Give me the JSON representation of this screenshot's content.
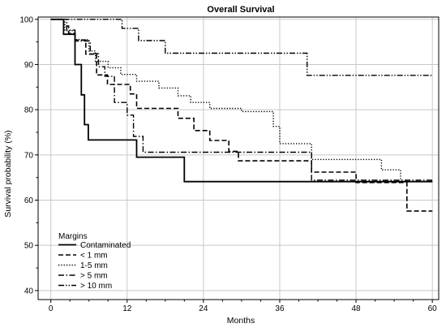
{
  "chart_data": {
    "type": "line",
    "title": "Overall Survival",
    "xlabel": "Months",
    "ylabel": "Survival probability (%)",
    "xlim": [
      -2,
      61
    ],
    "ylim": [
      38,
      100.5
    ],
    "xticks": [
      0,
      12,
      24,
      36,
      48,
      60
    ],
    "yticks": [
      40,
      50,
      60,
      70,
      80,
      90,
      100
    ],
    "grid": true,
    "legend": {
      "title": "Margins",
      "position": "bottom-left",
      "items": [
        "Contaminated",
        "< 1 mm",
        "1-5 mm",
        "> 5 mm",
        "> 10 mm"
      ]
    },
    "series": [
      {
        "name": "Contaminated",
        "line_style": "solid",
        "points": [
          [
            0,
            100
          ],
          [
            2,
            100
          ],
          [
            2,
            96.7
          ],
          [
            3.8,
            96.7
          ],
          [
            3.8,
            90
          ],
          [
            4.8,
            90
          ],
          [
            4.8,
            83.3
          ],
          [
            5.3,
            83.3
          ],
          [
            5.3,
            76.7
          ],
          [
            5.9,
            76.7
          ],
          [
            5.9,
            73.3
          ],
          [
            13.5,
            73.3
          ],
          [
            13.5,
            69.5
          ],
          [
            21,
            69.5
          ],
          [
            21,
            64.1
          ],
          [
            60,
            64.1
          ]
        ]
      },
      {
        "name": "< 1 mm",
        "line_style": "dashed",
        "points": [
          [
            0,
            100
          ],
          [
            2,
            100
          ],
          [
            2,
            98.5
          ],
          [
            2.8,
            98.5
          ],
          [
            2.8,
            96.9
          ],
          [
            3.8,
            96.9
          ],
          [
            3.8,
            95.4
          ],
          [
            5.5,
            95.4
          ],
          [
            5.5,
            92.3
          ],
          [
            7.2,
            92.3
          ],
          [
            7.2,
            87.7
          ],
          [
            8.9,
            87.7
          ],
          [
            8.9,
            85.6
          ],
          [
            12.5,
            85.6
          ],
          [
            12.5,
            83.5
          ],
          [
            13.5,
            83.5
          ],
          [
            13.5,
            80.3
          ],
          [
            20,
            80.3
          ],
          [
            20,
            78.1
          ],
          [
            22.5,
            78.1
          ],
          [
            22.5,
            75.4
          ],
          [
            25,
            75.4
          ],
          [
            25,
            73.2
          ],
          [
            28,
            73.2
          ],
          [
            28,
            70.8
          ],
          [
            29.5,
            70.8
          ],
          [
            29.5,
            68.7
          ],
          [
            41,
            68.7
          ],
          [
            41,
            66.2
          ],
          [
            48,
            66.2
          ],
          [
            48,
            63.9
          ],
          [
            56,
            63.9
          ],
          [
            56,
            57.6
          ],
          [
            60,
            57.6
          ]
        ]
      },
      {
        "name": "1-5 mm",
        "line_style": "dotted",
        "points": [
          [
            0,
            100
          ],
          [
            2.2,
            100
          ],
          [
            2.2,
            97.5
          ],
          [
            3.8,
            97.5
          ],
          [
            3.8,
            95.5
          ],
          [
            6,
            95.5
          ],
          [
            6,
            93
          ],
          [
            7,
            93
          ],
          [
            7,
            90.7
          ],
          [
            9,
            90.7
          ],
          [
            9,
            89.3
          ],
          [
            11,
            89.3
          ],
          [
            11,
            87.8
          ],
          [
            13.5,
            87.8
          ],
          [
            13.5,
            86.3
          ],
          [
            17,
            86.3
          ],
          [
            17,
            84.8
          ],
          [
            20,
            84.8
          ],
          [
            20,
            83.1
          ],
          [
            22,
            83.1
          ],
          [
            22,
            81.6
          ],
          [
            25,
            81.6
          ],
          [
            25,
            80.3
          ],
          [
            30,
            80.3
          ],
          [
            30,
            79.6
          ],
          [
            35,
            79.6
          ],
          [
            35,
            76.3
          ],
          [
            36,
            76.3
          ],
          [
            36,
            72.5
          ],
          [
            41,
            72.5
          ],
          [
            41,
            69
          ],
          [
            52,
            69
          ],
          [
            52,
            66.7
          ],
          [
            55,
            66.7
          ],
          [
            55,
            64.1
          ],
          [
            60,
            64.1
          ]
        ]
      },
      {
        "name": "> 5 mm",
        "line_style": "dashdot",
        "points": [
          [
            0,
            100
          ],
          [
            2.5,
            100
          ],
          [
            2.5,
            97.6
          ],
          [
            3.8,
            97.6
          ],
          [
            3.8,
            95.2
          ],
          [
            6.2,
            95.2
          ],
          [
            6.2,
            92.4
          ],
          [
            7.5,
            92.4
          ],
          [
            7.5,
            89.5
          ],
          [
            8.5,
            89.5
          ],
          [
            8.5,
            87.4
          ],
          [
            10,
            87.4
          ],
          [
            10,
            81.6
          ],
          [
            12,
            81.6
          ],
          [
            12,
            78.8
          ],
          [
            13,
            78.8
          ],
          [
            13,
            74.1
          ],
          [
            14.5,
            74.1
          ],
          [
            14.5,
            70.6
          ],
          [
            41,
            70.6
          ],
          [
            41,
            64.4
          ],
          [
            60,
            64.4
          ]
        ]
      },
      {
        "name": "> 10 mm",
        "line_style": "dashdotdot",
        "points": [
          [
            0,
            100
          ],
          [
            11.2,
            100
          ],
          [
            11.2,
            98
          ],
          [
            13.8,
            98
          ],
          [
            13.8,
            95.3
          ],
          [
            18,
            95.3
          ],
          [
            18,
            92.5
          ],
          [
            40.3,
            92.5
          ],
          [
            40.3,
            87.6
          ],
          [
            60,
            87.6
          ]
        ]
      }
    ]
  }
}
